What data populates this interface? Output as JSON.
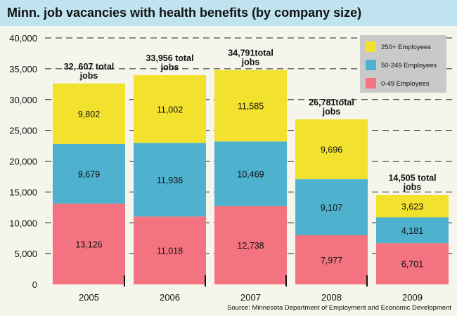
{
  "chart_data": {
    "type": "bar",
    "stacked": true,
    "title": "Minn. job vacancies with health benefits (by company size)",
    "categories": [
      "2005",
      "2006",
      "2007",
      "2008",
      "2009"
    ],
    "series": [
      {
        "name": "0-49 Employees",
        "color": "#f37380",
        "values": [
          13126,
          11018,
          12738,
          7977,
          6701
        ],
        "labels": [
          "13,126",
          "11,018",
          "12,738",
          "7,977",
          "6,701"
        ]
      },
      {
        "name": "50-249 Employees",
        "color": "#4eb2cf",
        "values": [
          9679,
          11936,
          10469,
          9107,
          4181
        ],
        "labels": [
          "9,679",
          "11,936",
          "10,469",
          "9,107",
          "4,181"
        ]
      },
      {
        "name": "250+ Employees",
        "color": "#f2e22e",
        "values": [
          9802,
          11002,
          11585,
          9696,
          3623
        ],
        "labels": [
          "9,802",
          "11,002",
          "11,585",
          "9,696",
          "3,623"
        ]
      }
    ],
    "totals": [
      {
        "value": 32607,
        "label": "32, 607 total\njobs"
      },
      {
        "value": 33956,
        "label": "33,956 total\njobs"
      },
      {
        "value": 34791,
        "label": "34,791total\njobs"
      },
      {
        "value": 26781,
        "label": "26,781total\njobs"
      },
      {
        "value": 14505,
        "label": "14,505 total\njobs"
      }
    ],
    "yticks": [
      "0",
      "5,000",
      "10,000",
      "15,000",
      "20,000",
      "25,000",
      "30,000",
      "35,000",
      "40,000"
    ],
    "ylim": [
      0,
      40000
    ],
    "grid": "dashed horizontal",
    "legend_position": "top-right",
    "legend_order": [
      "250+ Employees",
      "50-249 Employees",
      "0-49 Employees"
    ],
    "source": "Source: Minnesota Department of Employment and Economic Development"
  }
}
